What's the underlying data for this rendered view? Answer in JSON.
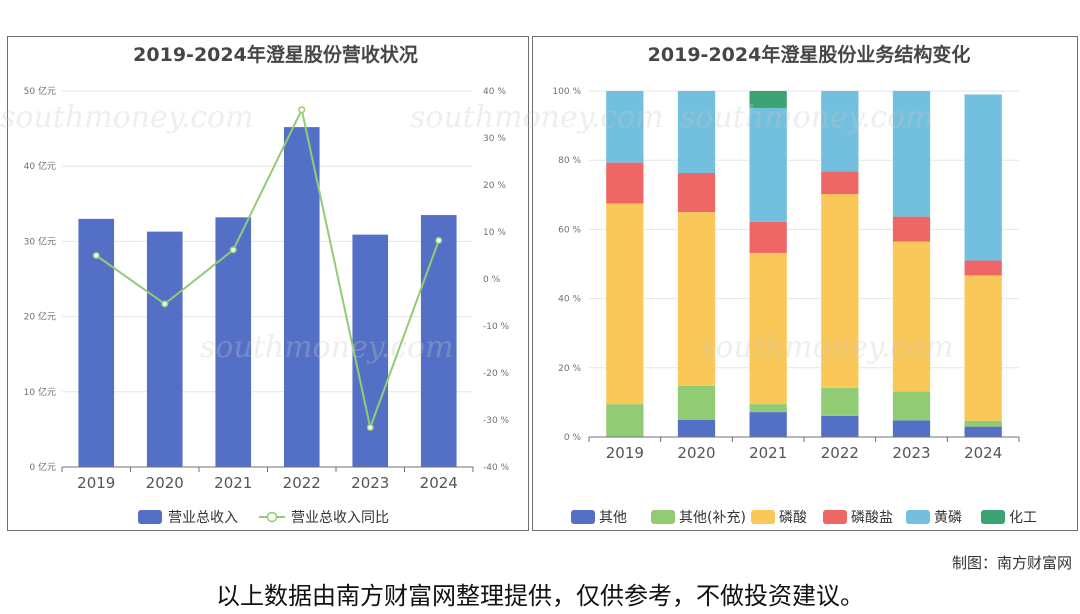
{
  "chart_data": [
    {
      "type": "bar+line",
      "title": "2019-2024年澄星股份营收状况",
      "categories": [
        "2019",
        "2020",
        "2021",
        "2022",
        "2023",
        "2024"
      ],
      "series": [
        {
          "name": "营业总收入",
          "kind": "bar",
          "axis": "left",
          "color": "#5470c6",
          "values": [
            33.0,
            31.3,
            33.2,
            45.2,
            30.9,
            33.5
          ]
        },
        {
          "name": "营业总收入同比",
          "kind": "line",
          "axis": "right",
          "color": "#91cc75",
          "values": [
            5.0,
            -5.3,
            6.2,
            36.0,
            -31.6,
            8.2
          ]
        }
      ],
      "yaxis_left": {
        "ticks": [
          "0 亿元",
          "10 亿元",
          "20 亿元",
          "30 亿元",
          "40 亿元",
          "50 亿元"
        ],
        "range": [
          0,
          50
        ]
      },
      "yaxis_right": {
        "ticks": [
          "-40 %",
          "-30 %",
          "-20 %",
          "-10 %",
          "0 %",
          "10 %",
          "20 %",
          "30 %",
          "40 %"
        ],
        "range": [
          -40,
          40
        ]
      },
      "legend_position": "bottom-center"
    },
    {
      "type": "stacked-bar",
      "title": "2019-2024年澄星股份业务结构变化",
      "categories": [
        "2019",
        "2020",
        "2021",
        "2022",
        "2023",
        "2024"
      ],
      "series": [
        {
          "name": "其他",
          "color": "#5470c6",
          "values": [
            0,
            5.0,
            7.2,
            6.1,
            4.8,
            3.0
          ]
        },
        {
          "name": "其他(补充)",
          "color": "#91cc75",
          "values": [
            9.5,
            9.8,
            2.3,
            8.1,
            8.4,
            1.7
          ]
        },
        {
          "name": "磷酸",
          "color": "#fac858",
          "values": [
            58.0,
            50.2,
            43.7,
            56.0,
            43.3,
            42.0
          ]
        },
        {
          "name": "磷酸盐",
          "color": "#ee6666",
          "values": [
            11.8,
            11.3,
            9.0,
            6.6,
            7.2,
            4.3
          ]
        },
        {
          "name": "黄磷",
          "color": "#73c0de",
          "values": [
            20.7,
            23.7,
            32.9,
            23.2,
            36.3,
            48.0
          ]
        },
        {
          "name": "化工",
          "color": "#3ba272",
          "values": [
            0,
            0,
            4.9,
            0,
            0,
            0
          ]
        }
      ],
      "yaxis": {
        "ticks": [
          "0 %",
          "20 %",
          "40 %",
          "60 %",
          "80 %",
          "100 %"
        ],
        "range": [
          0,
          100
        ]
      },
      "legend_position": "bottom-center"
    }
  ],
  "watermark": {
    "text_cn": "南方财富网",
    "text_en": "southmoney.com"
  },
  "footer": {
    "credit": "制图：南方财富网",
    "disclaimer": "以上数据由南方财富网整理提供，仅供参考，不做投资建议。"
  }
}
